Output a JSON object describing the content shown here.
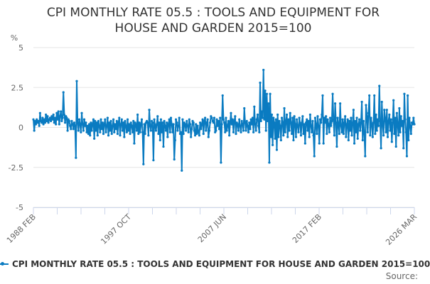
{
  "chart_data": {
    "type": "line",
    "title_lines": [
      "CPI MONTHLY RATE 05.5 : TOOLS AND EQUIPMENT FOR",
      "HOUSE AND GARDEN 2015=100"
    ],
    "ylabel": "%",
    "ylim": [
      -5,
      5
    ],
    "yticks": [
      5,
      2.5,
      0,
      -2.5,
      -5
    ],
    "ytick_labels": [
      "5",
      "2.5",
      "0",
      "-2.5",
      "-5"
    ],
    "grid": true,
    "x_start": "1988 FEB",
    "x_end": "2026 MAR",
    "x_frequency": "monthly",
    "xtick_labels": [
      "1988 FEB",
      "1997 OCT",
      "2007 JUN",
      "2017 FEB",
      "2026 MAR"
    ],
    "legend_position": "bottom",
    "series": [
      {
        "name": "CPI MONTHLY RATE 05.5 : TOOLS AND EQUIPMENT FOR HOUSE AND GARDEN 2015=100",
        "color": "#0a7bc1",
        "values": [
          0.5,
          -0.2,
          0.4,
          0.2,
          0.5,
          0.3,
          0.4,
          0.1,
          0.9,
          0.4,
          0.3,
          0.6,
          0.2,
          0.5,
          0.3,
          0.8,
          0.4,
          0.7,
          0.3,
          0.5,
          0.6,
          0.4,
          0.7,
          0.5,
          0.8,
          0.3,
          0.6,
          0.2,
          0.9,
          0.5,
          1.0,
          0.2,
          0.7,
          1.0,
          0.4,
          0.6,
          2.2,
          0.8,
          0.3,
          0.7,
          0.6,
          -0.2,
          0.5,
          0.4,
          0.1,
          -0.1,
          0.4,
          0.2,
          -0.1,
          0.3,
          0.1,
          -1.9,
          2.9,
          0.3,
          -0.2,
          0.5,
          0.2,
          -0.3,
          0.9,
          0.2,
          -0.2,
          0.5,
          0.1,
          0.3,
          -0.3,
          0.1,
          -0.4,
          0.2,
          -0.5,
          0.3,
          -0.2,
          0.2,
          0.5,
          -0.7,
          0.4,
          -0.2,
          0.3,
          -0.5,
          0.4,
          0.1,
          -0.3,
          0.5,
          -0.1,
          0.3,
          -0.4,
          0.2,
          0.5,
          -0.3,
          0.1,
          0.6,
          -0.5,
          0.3,
          -0.2,
          0.4,
          -0.4,
          0.1,
          0.5,
          -0.3,
          0.2,
          -0.1,
          0.4,
          -0.4,
          0.3,
          0.6,
          -0.5,
          0.2,
          0.5,
          -0.2,
          0.3,
          -0.6,
          0.4,
          0.1,
          -0.3,
          0.5,
          -0.2,
          0.2,
          -0.4,
          0.3,
          0.1,
          -0.3,
          0.4,
          -1.0,
          0.3,
          0.2,
          -0.2,
          0.8,
          -0.4,
          0.3,
          -0.3,
          0.2,
          0.5,
          -0.3,
          -2.3,
          0.2,
          -0.4,
          0.3,
          0.4,
          0.3,
          -0.5,
          1.1,
          0.1,
          -0.2,
          0.4,
          0.3,
          -2.05,
          0.5,
          0.1,
          -0.2,
          0.2,
          0.7,
          -0.4,
          0.3,
          -0.8,
          0.5,
          -0.3,
          0.3,
          -1.2,
          0.4,
          0.1,
          -0.2,
          0.3,
          -0.6,
          0.2,
          0.5,
          -0.3,
          0.6,
          0.2,
          -0.3,
          0.2,
          -2.0,
          -0.8,
          0.5,
          0.3,
          -0.2,
          0.1,
          0.6,
          -0.4,
          -0.3,
          -2.7,
          0.5,
          -0.4,
          0.3,
          0.2,
          -0.2,
          0.4,
          0.1,
          -0.3,
          0.5,
          0.2,
          -0.6,
          -0.1,
          0.4,
          0.3,
          -0.2,
          -0.5,
          0.2,
          -0.4,
          0.1,
          -0.3,
          -0.5,
          0.3,
          -0.1,
          0.2,
          0.5,
          -0.4,
          0.4,
          0.6,
          -0.2,
          0.3,
          0.5,
          -0.6,
          -0.2,
          0.3,
          0.7,
          0.6,
          0.4,
          0.3,
          0.6,
          -0.3,
          -0.2,
          0.5,
          0.1,
          0.4,
          -0.1,
          0.6,
          -2.2,
          0.2,
          2.0,
          0.5,
          0.3,
          -0.3,
          0.6,
          -0.2,
          0.1,
          0.4,
          -0.5,
          0.3,
          0.9,
          0.2,
          0.5,
          -0.3,
          0.4,
          0.7,
          -0.4,
          0.3,
          0.2,
          -0.2,
          0.5,
          0.1,
          -0.3,
          0.4,
          0.2,
          -0.2,
          1.2,
          0.3,
          -0.2,
          0.4,
          0.1,
          -0.3,
          0.3,
          -0.1,
          0.5,
          0.2,
          0.6,
          -0.3,
          1.3,
          0.2,
          -0.2,
          0.5,
          0.8,
          0.1,
          -0.3,
          2.8,
          0.4,
          1.0,
          0.6,
          3.6,
          0.5,
          2.3,
          -0.2,
          2.1,
          0.4,
          1.5,
          -2.2,
          2.1,
          -0.6,
          0.8,
          -1.1,
          0.6,
          0.3,
          -0.7,
          0.5,
          -1.4,
          0.8,
          -0.6,
          0.4,
          0.1,
          -0.8,
          0.6,
          0.3,
          -0.5,
          1.2,
          -0.3,
          0.4,
          0.8,
          -0.6,
          0.5,
          -0.2,
          0.9,
          0.3,
          -0.4,
          0.6,
          -0.8,
          0.7,
          0.2,
          -0.6,
          0.5,
          0.1,
          -0.3,
          0.6,
          0.2,
          -0.5,
          0.3,
          0.7,
          -0.4,
          0.2,
          -1.0,
          0.3,
          0.5,
          -0.2,
          0.4,
          -0.6,
          0.8,
          0.1,
          -0.3,
          0.4,
          -0.5,
          -1.8,
          0.6,
          0.2,
          -0.4,
          0.7,
          0.1,
          -1.0,
          0.5,
          0.3,
          0.8,
          2.0,
          -1.0,
          0.6,
          0.3,
          0.7,
          -0.4,
          0.5,
          0.2,
          -0.3,
          0.6,
          0.1,
          0.4,
          2.1,
          0.5,
          -0.5,
          1.5,
          0.3,
          -1.2,
          0.6,
          0.2,
          -0.4,
          1.5,
          0.1,
          -0.3,
          0.5,
          -0.4,
          0.3,
          0.7,
          -0.6,
          0.2,
          0.5,
          -0.8,
          0.4,
          -0.2,
          0.6,
          -0.5,
          0.3,
          1.1,
          -1.0,
          0.4,
          -0.3,
          0.6,
          -0.7,
          0.2,
          0.5,
          -0.2,
          0.3,
          1.6,
          -0.8,
          0.4,
          -0.4,
          -1.8,
          1.4,
          0.7,
          -0.3,
          0.9,
          2.0,
          -0.5,
          0.6,
          0.2,
          -0.6,
          0.3,
          2.0,
          -0.4,
          0.8,
          -0.2,
          0.5,
          0.1,
          2.6,
          0.4,
          -1.3,
          1.6,
          0.2,
          -0.5,
          1.1,
          0.6,
          -0.3,
          1.1,
          -0.6,
          0.4,
          0.8,
          -0.2,
          0.5,
          -0.9,
          0.3,
          1.7,
          -0.4,
          0.6,
          -1.2,
          0.9,
          0.2,
          -0.5,
          1.2,
          -0.3,
          0.7,
          0.1,
          0.4,
          -1.3,
          2.1,
          0.5,
          -0.3,
          -1.8,
          2.0,
          -0.8,
          0.6,
          0.1,
          -0.4,
          0.3,
          0.2,
          0.6,
          0.2
        ]
      }
    ]
  },
  "legend": {
    "label": "CPI MONTHLY RATE 05.5 : TOOLS AND EQUIPMENT FOR HOUSE AND GARDEN 2015=100"
  },
  "source": "Source:"
}
